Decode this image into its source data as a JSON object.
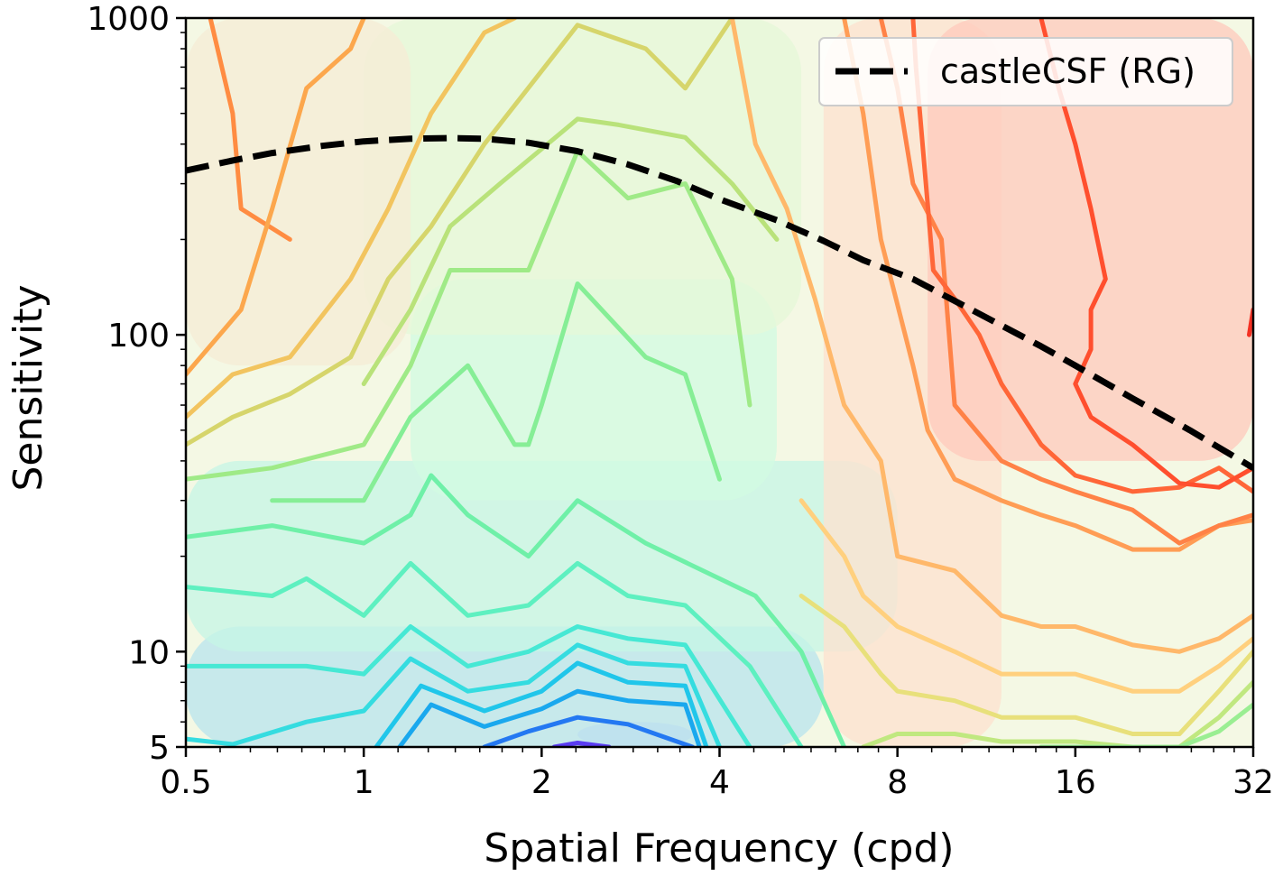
{
  "chart_data": {
    "type": "contour",
    "xlabel": "Spatial Frequency (cpd)",
    "ylabel": "Sensitivity",
    "x_scale": "log2",
    "y_scale": "log10",
    "xlim": [
      0.5,
      32
    ],
    "ylim": [
      5,
      1000
    ],
    "x_ticks": [
      {
        "value": 0.5,
        "label": "0.5"
      },
      {
        "value": 1,
        "label": "1"
      },
      {
        "value": 2,
        "label": "2"
      },
      {
        "value": 4,
        "label": "4"
      },
      {
        "value": 8,
        "label": "8"
      },
      {
        "value": 16,
        "label": "16"
      },
      {
        "value": 32,
        "label": "32"
      }
    ],
    "y_ticks": [
      {
        "value": 5,
        "label": "5"
      },
      {
        "value": 10,
        "label": "10"
      },
      {
        "value": 100,
        "label": "100"
      },
      {
        "value": 1000,
        "label": "1000"
      }
    ],
    "legend": {
      "position": "top-right",
      "entries": [
        {
          "label": "castleCSF (RG)",
          "style": "dashed",
          "color": "#000000"
        }
      ]
    },
    "series": [
      {
        "name": "castleCSF (RG)",
        "x": [
          0.5,
          0.6,
          0.7,
          0.85,
          1.0,
          1.2,
          1.4,
          1.6,
          1.9,
          2.3,
          2.8,
          3.4,
          4.0,
          5.0,
          6.0,
          7.0,
          8.5,
          10,
          12,
          14,
          16,
          20,
          25,
          32
        ],
        "y": [
          330,
          355,
          375,
          395,
          408,
          416,
          418,
          416,
          404,
          380,
          345,
          305,
          268,
          230,
          198,
          172,
          150,
          128,
          107,
          92,
          80,
          63,
          50,
          38
        ]
      }
    ],
    "contour_fills": [
      {
        "color": "#c5d0f0",
        "x": [
          2.3,
          3.6
        ],
        "y": [
          5,
          6
        ]
      },
      {
        "color": "#b8e4ee",
        "x": [
          0.5,
          6.0
        ],
        "y": [
          5,
          12
        ]
      },
      {
        "color": "#c5f5e5",
        "x": [
          0.5,
          8.0
        ],
        "y": [
          10,
          40
        ]
      },
      {
        "color": "#d2fbe2",
        "x": [
          1.2,
          5.0
        ],
        "y": [
          30,
          150
        ]
      },
      {
        "color": "#e6f8d8",
        "x": [
          1.0,
          5.5
        ],
        "y": [
          100,
          1000
        ]
      },
      {
        "color": "#f5ecd5",
        "x": [
          0.5,
          1.2
        ],
        "y": [
          80,
          1000
        ]
      },
      {
        "color": "#fde2cf",
        "x": [
          6.0,
          12.0
        ],
        "y": [
          5,
          1000
        ]
      },
      {
        "color": "#ffc9bc",
        "x": [
          9.0,
          32.0
        ],
        "y": [
          40,
          1000
        ]
      }
    ],
    "contour_lines": [
      {
        "color": "#ff8c42",
        "x": [
          0.55,
          0.6,
          0.62,
          0.75
        ],
        "y": [
          1000,
          500,
          250,
          200
        ]
      },
      {
        "color": "#fca74d",
        "x": [
          0.5,
          0.62,
          0.7,
          0.8,
          0.95,
          1.0
        ],
        "y": [
          75,
          120,
          250,
          600,
          800,
          1000
        ]
      },
      {
        "color": "#f2c45f",
        "x": [
          0.5,
          0.6,
          0.75,
          0.95,
          1.1,
          1.3,
          1.6,
          1.8
        ],
        "y": [
          55,
          75,
          85,
          150,
          250,
          500,
          900,
          1000
        ]
      },
      {
        "color": "#d6d56b",
        "x": [
          0.5,
          0.6,
          0.75,
          0.95,
          1.1,
          1.3,
          1.6,
          2.3,
          3.0,
          3.5,
          4.2
        ],
        "y": [
          45,
          55,
          65,
          85,
          150,
          220,
          400,
          950,
          800,
          600,
          1000
        ]
      },
      {
        "color": "#b9e27a",
        "x": [
          1.0,
          1.2,
          1.4,
          1.7,
          2.3,
          2.7,
          3.5,
          4.2,
          5.0
        ],
        "y": [
          70,
          120,
          220,
          300,
          480,
          460,
          420,
          300,
          200
        ]
      },
      {
        "color": "#9fea87",
        "x": [
          0.5,
          0.7,
          1.0,
          1.2,
          1.4,
          1.9,
          2.3,
          2.8,
          3.5,
          4.2,
          4.5
        ],
        "y": [
          35,
          38,
          45,
          80,
          160,
          160,
          380,
          270,
          300,
          150,
          60
        ]
      },
      {
        "color": "#86ee96",
        "x": [
          0.7,
          1.0,
          1.2,
          1.5,
          1.8,
          1.9,
          2.0,
          2.3,
          3.0,
          3.5,
          4.0
        ],
        "y": [
          30,
          30,
          55,
          80,
          45,
          45,
          60,
          145,
          85,
          75,
          35
        ]
      },
      {
        "color": "#6ff0a8",
        "x": [
          0.5,
          0.7,
          1.0,
          1.2,
          1.3,
          1.5,
          1.9,
          2.3,
          3.0,
          4.0,
          4.6,
          5.5,
          6.5
        ],
        "y": [
          23,
          25,
          22,
          27,
          36,
          27,
          20,
          30,
          22,
          17,
          15,
          10,
          5
        ]
      },
      {
        "color": "#5ef0c0",
        "x": [
          0.5,
          0.7,
          0.8,
          1.0,
          1.2,
          1.5,
          1.9,
          2.3,
          2.8,
          3.5,
          4.5,
          5.5
        ],
        "y": [
          16,
          15,
          17,
          13,
          19,
          13,
          14,
          19,
          15,
          14,
          9,
          5
        ]
      },
      {
        "color": "#46e8d4",
        "x": [
          0.5,
          0.6,
          0.8,
          1.0,
          1.2,
          1.5,
          1.9,
          2.3,
          2.8,
          3.5,
          4.5
        ],
        "y": [
          9,
          9,
          9,
          8.5,
          12,
          9,
          10,
          12,
          11,
          10.5,
          5
        ]
      },
      {
        "color": "#35dce0",
        "x": [
          0.5,
          0.6,
          0.8,
          1.0,
          1.2,
          1.5,
          1.9,
          2.3,
          2.8,
          3.5,
          4.0
        ],
        "y": [
          5.3,
          5.1,
          6,
          6.5,
          9.5,
          7.5,
          8,
          10.5,
          9.2,
          9,
          5
        ]
      },
      {
        "color": "#20c6ea",
        "x": [
          1.05,
          1.25,
          1.6,
          2.0,
          2.3,
          2.8,
          3.5,
          3.8
        ],
        "y": [
          5,
          7.8,
          6.5,
          7.5,
          9.2,
          8,
          7.8,
          5
        ]
      },
      {
        "color": "#1aa8ee",
        "x": [
          1.15,
          1.3,
          1.6,
          2.0,
          2.3,
          2.8,
          3.5,
          3.7
        ],
        "y": [
          5,
          6.8,
          5.8,
          6.6,
          7.5,
          7,
          6.8,
          5
        ]
      },
      {
        "color": "#2478f2",
        "x": [
          1.6,
          1.9,
          2.3,
          2.8,
          3.6
        ],
        "y": [
          5,
          5.6,
          6.2,
          5.9,
          5
        ]
      },
      {
        "color": "#5a3cf2",
        "x": [
          2.1,
          2.3,
          2.6
        ],
        "y": [
          5,
          5.15,
          5
        ]
      },
      {
        "color": "#ffb86a",
        "x": [
          4.2,
          4.6,
          5.2,
          5.8,
          6.5,
          7.5,
          8.0,
          10,
          12,
          14,
          16,
          20,
          24,
          28,
          32
        ],
        "y": [
          1000,
          400,
          250,
          130,
          60,
          40,
          20,
          18,
          13,
          12,
          12,
          10.5,
          10,
          11,
          13
        ]
      },
      {
        "color": "#ffd07e",
        "x": [
          5.5,
          6.5,
          7.0,
          8.0,
          10,
          12,
          16,
          20,
          24,
          28,
          32
        ],
        "y": [
          30,
          20,
          15,
          12,
          10,
          8.5,
          8.5,
          7.5,
          7.5,
          9,
          11
        ]
      },
      {
        "color": "#e8e07b",
        "x": [
          5.5,
          6.5,
          7.5,
          8.0,
          10,
          12,
          16,
          20,
          24,
          28,
          32
        ],
        "y": [
          15,
          12,
          8.5,
          7.5,
          7,
          6.2,
          6.2,
          5.5,
          5.5,
          7.5,
          10
        ]
      },
      {
        "color": "#c0e880",
        "x": [
          7.0,
          8.0,
          10,
          12,
          16,
          20,
          24,
          28,
          32
        ],
        "y": [
          5,
          5.5,
          5.5,
          5.2,
          5.2,
          5,
          5,
          6.2,
          8
        ]
      },
      {
        "color": "#9aee92",
        "x": [
          14,
          24,
          28,
          32
        ],
        "y": [
          5,
          5,
          5.6,
          6.8
        ]
      },
      {
        "color": "#ff9d55",
        "x": [
          6.5,
          7.0,
          7.5,
          8.5,
          9.0,
          10,
          12,
          14,
          16,
          20,
          24,
          28,
          32
        ],
        "y": [
          1000,
          500,
          200,
          80,
          50,
          35,
          30,
          27,
          25,
          21,
          21,
          25,
          26
        ]
      },
      {
        "color": "#ff8247",
        "x": [
          7.5,
          8.0,
          8.5,
          9.5,
          10,
          12,
          14,
          16,
          20,
          24,
          28,
          32
        ],
        "y": [
          1000,
          600,
          300,
          200,
          60,
          40,
          35,
          32,
          28,
          22,
          25,
          27
        ]
      },
      {
        "color": "#ff6638",
        "x": [
          8.5,
          8.6,
          9.2,
          10,
          11,
          12,
          14,
          16,
          20,
          24,
          28,
          32
        ],
        "y": [
          1000,
          700,
          160,
          130,
          100,
          70,
          45,
          36,
          32,
          33,
          38,
          32
        ]
      },
      {
        "color": "#ff4f2e",
        "x": [
          14,
          15,
          16,
          17,
          18,
          17,
          17,
          16,
          17,
          20,
          24,
          28,
          32
        ],
        "y": [
          1000,
          600,
          400,
          250,
          150,
          120,
          90,
          70,
          55,
          45,
          34,
          33,
          38
        ]
      },
      {
        "color": "#f43022",
        "x": [
          31.5,
          32
        ],
        "y": [
          100,
          120
        ]
      }
    ]
  }
}
